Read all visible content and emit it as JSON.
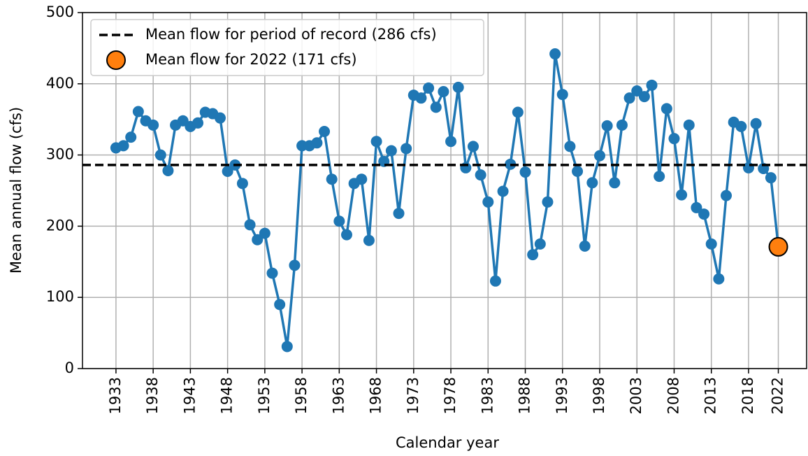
{
  "chart_data": {
    "type": "line",
    "xlabel": "Calendar year",
    "ylabel": "Mean annual flow (cfs)",
    "x": [
      1933,
      1934,
      1935,
      1936,
      1937,
      1938,
      1939,
      1940,
      1941,
      1942,
      1943,
      1944,
      1945,
      1946,
      1947,
      1948,
      1949,
      1950,
      1951,
      1952,
      1953,
      1954,
      1955,
      1956,
      1957,
      1958,
      1959,
      1960,
      1961,
      1962,
      1963,
      1964,
      1965,
      1966,
      1967,
      1968,
      1969,
      1970,
      1971,
      1972,
      1973,
      1974,
      1975,
      1976,
      1977,
      1978,
      1979,
      1980,
      1981,
      1982,
      1983,
      1984,
      1985,
      1986,
      1987,
      1988,
      1989,
      1990,
      1991,
      1992,
      1993,
      1994,
      1995,
      1996,
      1997,
      1998,
      1999,
      2000,
      2001,
      2002,
      2003,
      2004,
      2005,
      2006,
      2007,
      2008,
      2009,
      2010,
      2011,
      2012,
      2013,
      2014,
      2015,
      2016,
      2017,
      2018,
      2019,
      2020,
      2021,
      2022
    ],
    "series": [
      {
        "color": "#1f77b4",
        "values": [
          310,
          313,
          325,
          361,
          348,
          342,
          300,
          278,
          342,
          348,
          340,
          345,
          360,
          358,
          352,
          277,
          286,
          260,
          202,
          181,
          190,
          134,
          90,
          31,
          145,
          313,
          313,
          317,
          333,
          266,
          207,
          188,
          260,
          266,
          180,
          319,
          291,
          306,
          218,
          309,
          384,
          380,
          394,
          367,
          389,
          319,
          395,
          282,
          312,
          272,
          234,
          123,
          249,
          287,
          360,
          276,
          160,
          175,
          234,
          442,
          385,
          312,
          277,
          172,
          261,
          299,
          341,
          261,
          342,
          380,
          390,
          382,
          398,
          270,
          365,
          323,
          244,
          342,
          226,
          217,
          175,
          126,
          243,
          346,
          340,
          282,
          344,
          281,
          268,
          171
        ]
      }
    ],
    "reference_line": {
      "name": "Mean flow for period of record (286 cfs)",
      "value": 286,
      "color": "#000000"
    },
    "highlight": {
      "name": "Mean flow for 2022 (171 cfs)",
      "x": 2022,
      "value": 171,
      "color": "#ff7f0e"
    },
    "xlim": [
      1928.5,
      2025.8
    ],
    "xticks": [
      1933,
      1938,
      1943,
      1948,
      1953,
      1958,
      1963,
      1968,
      1973,
      1978,
      1983,
      1988,
      1993,
      1998,
      2003,
      2008,
      2013,
      2018,
      2022
    ],
    "ylim": [
      0,
      500
    ],
    "yticks": [
      0,
      100,
      200,
      300,
      400,
      500
    ],
    "grid": true,
    "legend": "upper left"
  }
}
